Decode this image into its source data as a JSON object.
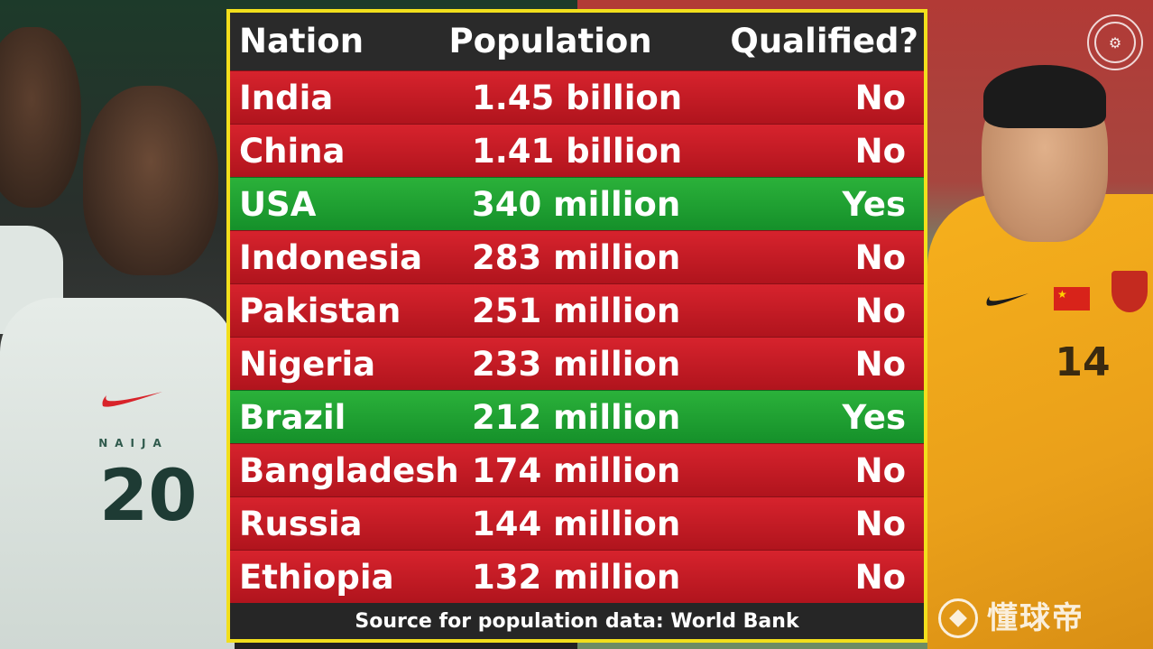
{
  "table": {
    "headers": {
      "nation": "Nation",
      "population": "Population",
      "qualified": "Qualified?"
    },
    "rows": [
      {
        "nation": "India",
        "population": "1.45 billion",
        "qualified": "No"
      },
      {
        "nation": "China",
        "population": "1.41 billion",
        "qualified": "No"
      },
      {
        "nation": "USA",
        "population": "340 million",
        "qualified": "Yes"
      },
      {
        "nation": "Indonesia",
        "population": "283 million",
        "qualified": "No"
      },
      {
        "nation": "Pakistan",
        "population": "251 million",
        "qualified": "No"
      },
      {
        "nation": "Nigeria",
        "population": "233 million",
        "qualified": "No"
      },
      {
        "nation": "Brazil",
        "population": "212 million",
        "qualified": "Yes"
      },
      {
        "nation": "Bangladesh",
        "population": "174 million",
        "qualified": "No"
      },
      {
        "nation": "Russia",
        "population": "144 million",
        "qualified": "No"
      },
      {
        "nation": "Ethiopia",
        "population": "132 million",
        "qualified": "No"
      }
    ],
    "source": "Source for population data: World Bank"
  },
  "background": {
    "left_jersey_text": "NAIJA",
    "left_jersey_number": "20",
    "right_jersey_number": "14"
  },
  "watermark": {
    "text": "懂球帝"
  },
  "colors": {
    "no_row": "#c41b24",
    "yes_row": "#1f9f31",
    "border": "#f2df1c",
    "header_bg": "#2a2a2a"
  },
  "icons": {
    "top_right_logo": "circular-logo-icon",
    "watermark_logo": "football-icon"
  }
}
